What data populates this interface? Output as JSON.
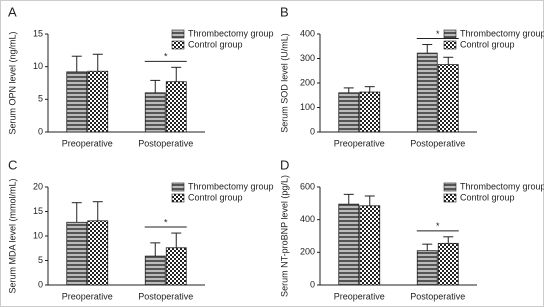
{
  "chart_data": [
    {
      "type": "bar",
      "panel": "A",
      "ylabel": "Serum OPN level (ng/mL)",
      "categories": [
        "Preoperative",
        "Postoperative"
      ],
      "series": [
        {
          "name": "Thrombectomy group",
          "color": "#555555",
          "values": [
            9.2,
            6.0
          ],
          "errors": [
            2.4,
            1.9
          ]
        },
        {
          "name": "Control group",
          "color": "#222222",
          "values": [
            9.3,
            7.7
          ],
          "errors": [
            2.6,
            2.2
          ]
        }
      ],
      "ylim": [
        0,
        15
      ],
      "yticks": [
        0,
        5,
        10,
        15
      ],
      "annotation": "*"
    },
    {
      "type": "bar",
      "panel": "B",
      "ylabel": "Serum SOD level (U/mL)",
      "categories": [
        "Preoperative",
        "Postoperative"
      ],
      "series": [
        {
          "name": "Thrombectomy group",
          "color": "#555555",
          "values": [
            160,
            322
          ],
          "errors": [
            20,
            35
          ]
        },
        {
          "name": "Control group",
          "color": "#222222",
          "values": [
            163,
            275
          ],
          "errors": [
            22,
            30
          ]
        }
      ],
      "ylim": [
        0,
        400
      ],
      "yticks": [
        0,
        100,
        200,
        300,
        400
      ],
      "annotation": "*"
    },
    {
      "type": "bar",
      "panel": "C",
      "ylabel": "Serum MDA level (mmol/mL)",
      "categories": [
        "Preoperative",
        "Postoperative"
      ],
      "series": [
        {
          "name": "Thrombectomy group",
          "color": "#555555",
          "values": [
            12.8,
            5.9
          ],
          "errors": [
            4.0,
            2.7
          ]
        },
        {
          "name": "Control group",
          "color": "#222222",
          "values": [
            13.1,
            7.6
          ],
          "errors": [
            3.9,
            3.0
          ]
        }
      ],
      "ylim": [
        0,
        20
      ],
      "yticks": [
        0,
        5,
        10,
        15,
        20
      ],
      "annotation": "*"
    },
    {
      "type": "bar",
      "panel": "D",
      "ylabel": "Serum NT-proBNP level (pg/L)",
      "categories": [
        "Preoperative",
        "Postoperative"
      ],
      "series": [
        {
          "name": "Thrombectomy group",
          "color": "#555555",
          "values": [
            495,
            210
          ],
          "errors": [
            60,
            40
          ]
        },
        {
          "name": "Control group",
          "color": "#222222",
          "values": [
            485,
            255
          ],
          "errors": [
            60,
            40
          ]
        }
      ],
      "ylim": [
        0,
        600
      ],
      "yticks": [
        0,
        200,
        400,
        600
      ],
      "annotation": "*"
    }
  ]
}
